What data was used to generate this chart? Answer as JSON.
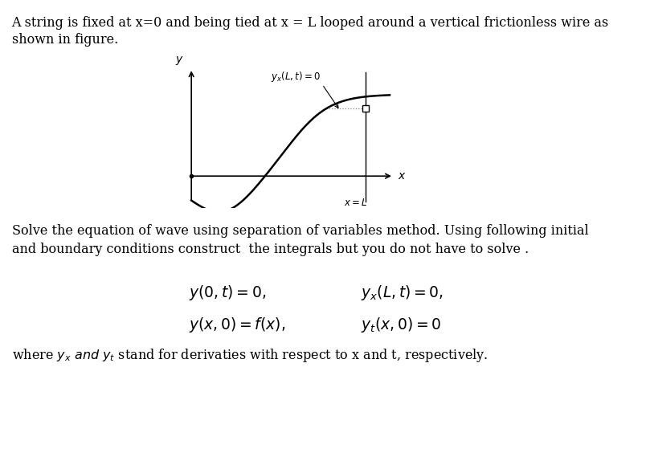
{
  "line1": "A string is fixed at x=0 and being tied at x = L looped around a vertical frictionless wire as",
  "line2": "shown in figure.",
  "line3": "Solve the equation of wave using separation of variables method. Using following initial",
  "line4": "and boundary conditions construct  the integrals but you do not have to solve .",
  "eq1_left": "$y(0, t) = 0,$",
  "eq1_right": "$y_x(L, t) = 0,$",
  "eq2_left": "$y(x, 0) = f(x),$",
  "eq2_right": "$y_t(x, 0) = 0$",
  "line_where": "where $y_x$ $and$ $y_t$ stand for derivaties with respect to x and t, respectively.",
  "fig_ylabel": "$y$",
  "fig_xlabel": "$x$",
  "fig_annotation": "$y_x(L,t)=0$",
  "fig_xL": "$x=L$",
  "bg_color": "#ffffff"
}
